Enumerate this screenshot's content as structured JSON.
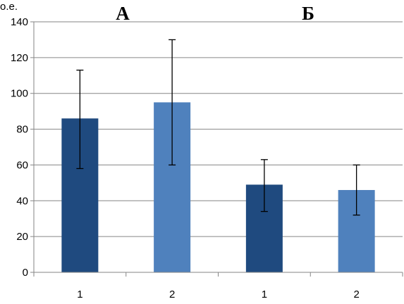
{
  "chart_data": {
    "type": "bar",
    "unit_label": "о.е.",
    "groups": [
      "А",
      "Б"
    ],
    "categories": [
      "1",
      "2",
      "1",
      "2"
    ],
    "values": [
      86,
      95,
      49,
      46
    ],
    "error_high": [
      113,
      130,
      63,
      60
    ],
    "error_low": [
      58,
      60,
      34,
      32
    ],
    "bar_colors": [
      "#1f4a7f",
      "#4f81bd",
      "#1f4a7f",
      "#4f81bd"
    ],
    "ylim": [
      0,
      140
    ],
    "yticks": [
      0,
      20,
      40,
      60,
      80,
      100,
      120,
      140
    ],
    "grid": true
  }
}
